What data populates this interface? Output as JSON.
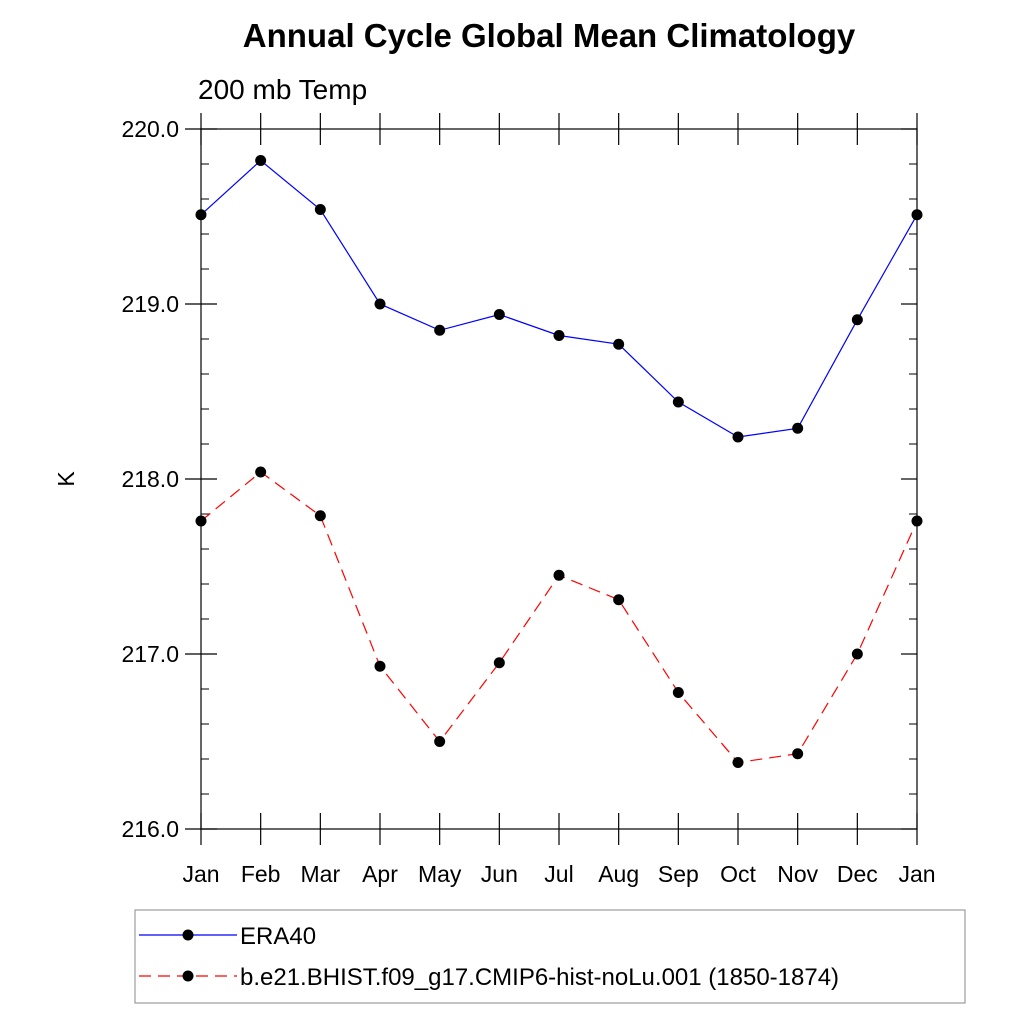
{
  "chart_data": {
    "type": "line",
    "title": "Annual Cycle Global Mean Climatology",
    "subtitle": "200 mb Temp",
    "xlabel": "",
    "ylabel": "K",
    "categories": [
      "Jan",
      "Feb",
      "Mar",
      "Apr",
      "May",
      "Jun",
      "Jul",
      "Aug",
      "Sep",
      "Oct",
      "Nov",
      "Dec",
      "Jan"
    ],
    "ylim": [
      216.0,
      220.0
    ],
    "yticks": [
      "216.0",
      "217.0",
      "218.0",
      "219.0",
      "220.0"
    ],
    "grid": false,
    "legend_position": "bottom",
    "series": [
      {
        "name": "ERA40",
        "color": "#0000ff",
        "dash": "solid",
        "marker": "filled-circle",
        "values": [
          219.51,
          219.82,
          219.54,
          219.0,
          218.85,
          218.94,
          218.82,
          218.77,
          218.44,
          218.24,
          218.29,
          218.91,
          219.51
        ]
      },
      {
        "name": "b.e21.BHIST.f09_g17.CMIP6-hist-noLu.001 (1850-1874)",
        "color": "#ff0000",
        "dash": "dashed",
        "marker": "filled-circle",
        "values": [
          217.76,
          218.04,
          217.79,
          216.93,
          216.5,
          216.95,
          217.45,
          217.31,
          216.78,
          216.38,
          216.43,
          217.0,
          217.76
        ]
      }
    ]
  }
}
